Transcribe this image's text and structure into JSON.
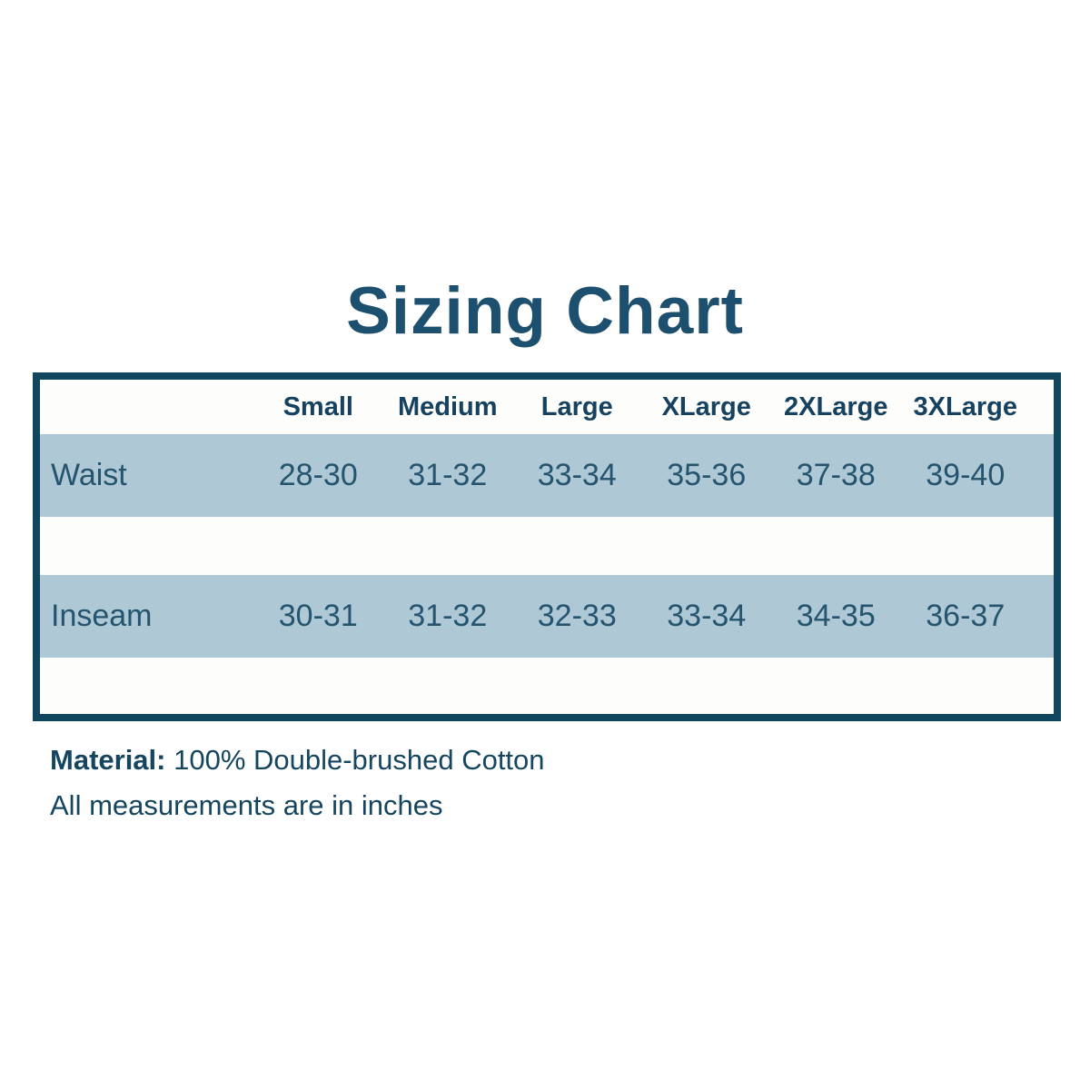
{
  "title": "Sizing Chart",
  "chart_data": {
    "type": "table",
    "title": "Sizing Chart",
    "columns": [
      "Small",
      "Medium",
      "Large",
      "XLarge",
      "2XLarge",
      "3XLarge"
    ],
    "rows": [
      {
        "label": "Waist",
        "values": [
          "28-30",
          "31-32",
          "33-34",
          "35-36",
          "37-38",
          "39-40"
        ]
      },
      {
        "label": "Inseam",
        "values": [
          "30-31",
          "31-32",
          "32-33",
          "33-34",
          "34-35",
          "36-37"
        ]
      }
    ],
    "units": "inches",
    "notes": [
      "Material: 100% Double-brushed Cotton",
      "All measurements are in inches"
    ],
    "layout": {
      "grid": false,
      "shaded_row_color": "#aec8d6",
      "border_color": "#12455e"
    }
  },
  "notes": {
    "material_label": "Material:",
    "material_value": " 100% Double-brushed Cotton",
    "measurements": "All measurements are in inches"
  },
  "colors": {
    "title_text": "#1d4f6e",
    "table_border": "#12455e",
    "row_background": "#aec8d6",
    "body_text": "#24546e"
  }
}
